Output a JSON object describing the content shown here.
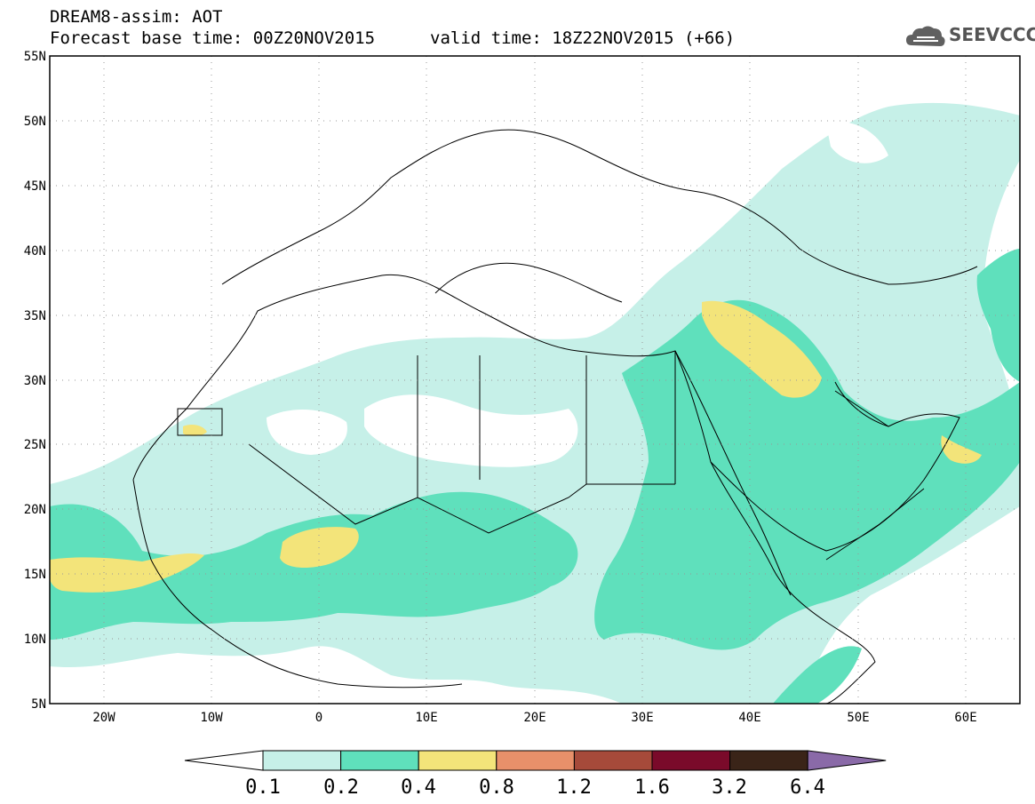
{
  "header": {
    "title": "DREAM8-assim: AOT",
    "base_time": "Forecast base time: 00Z20NOV2015",
    "valid_time": "valid time: 18Z22NOV2015 (+66)"
  },
  "logo": {
    "text": "SEEVCCC",
    "icon": "cloud-icon"
  },
  "map": {
    "projection": "equirectangular",
    "lon_range": [
      -25,
      65
    ],
    "lat_range": [
      5,
      55
    ],
    "lat_labels": [
      "55N",
      "50N",
      "45N",
      "40N",
      "35N",
      "30N",
      "25N",
      "20N",
      "15N",
      "10N",
      "5N"
    ],
    "lon_labels": [
      "20W",
      "10W",
      "0",
      "10E",
      "20E",
      "30E",
      "40E",
      "50E",
      "60E"
    ],
    "grid": "dotted"
  },
  "colorbar": {
    "labels": [
      "0.1",
      "0.2",
      "0.4",
      "0.8",
      "1.2",
      "1.6",
      "3.2",
      "6.4"
    ],
    "colors": [
      "#ffffff",
      "#c6f0e8",
      "#5fe0bc",
      "#f3e47a",
      "#e8906a",
      "#a64a3a",
      "#7a0a2a",
      "#3a2418",
      "#8a6aa8"
    ]
  }
}
